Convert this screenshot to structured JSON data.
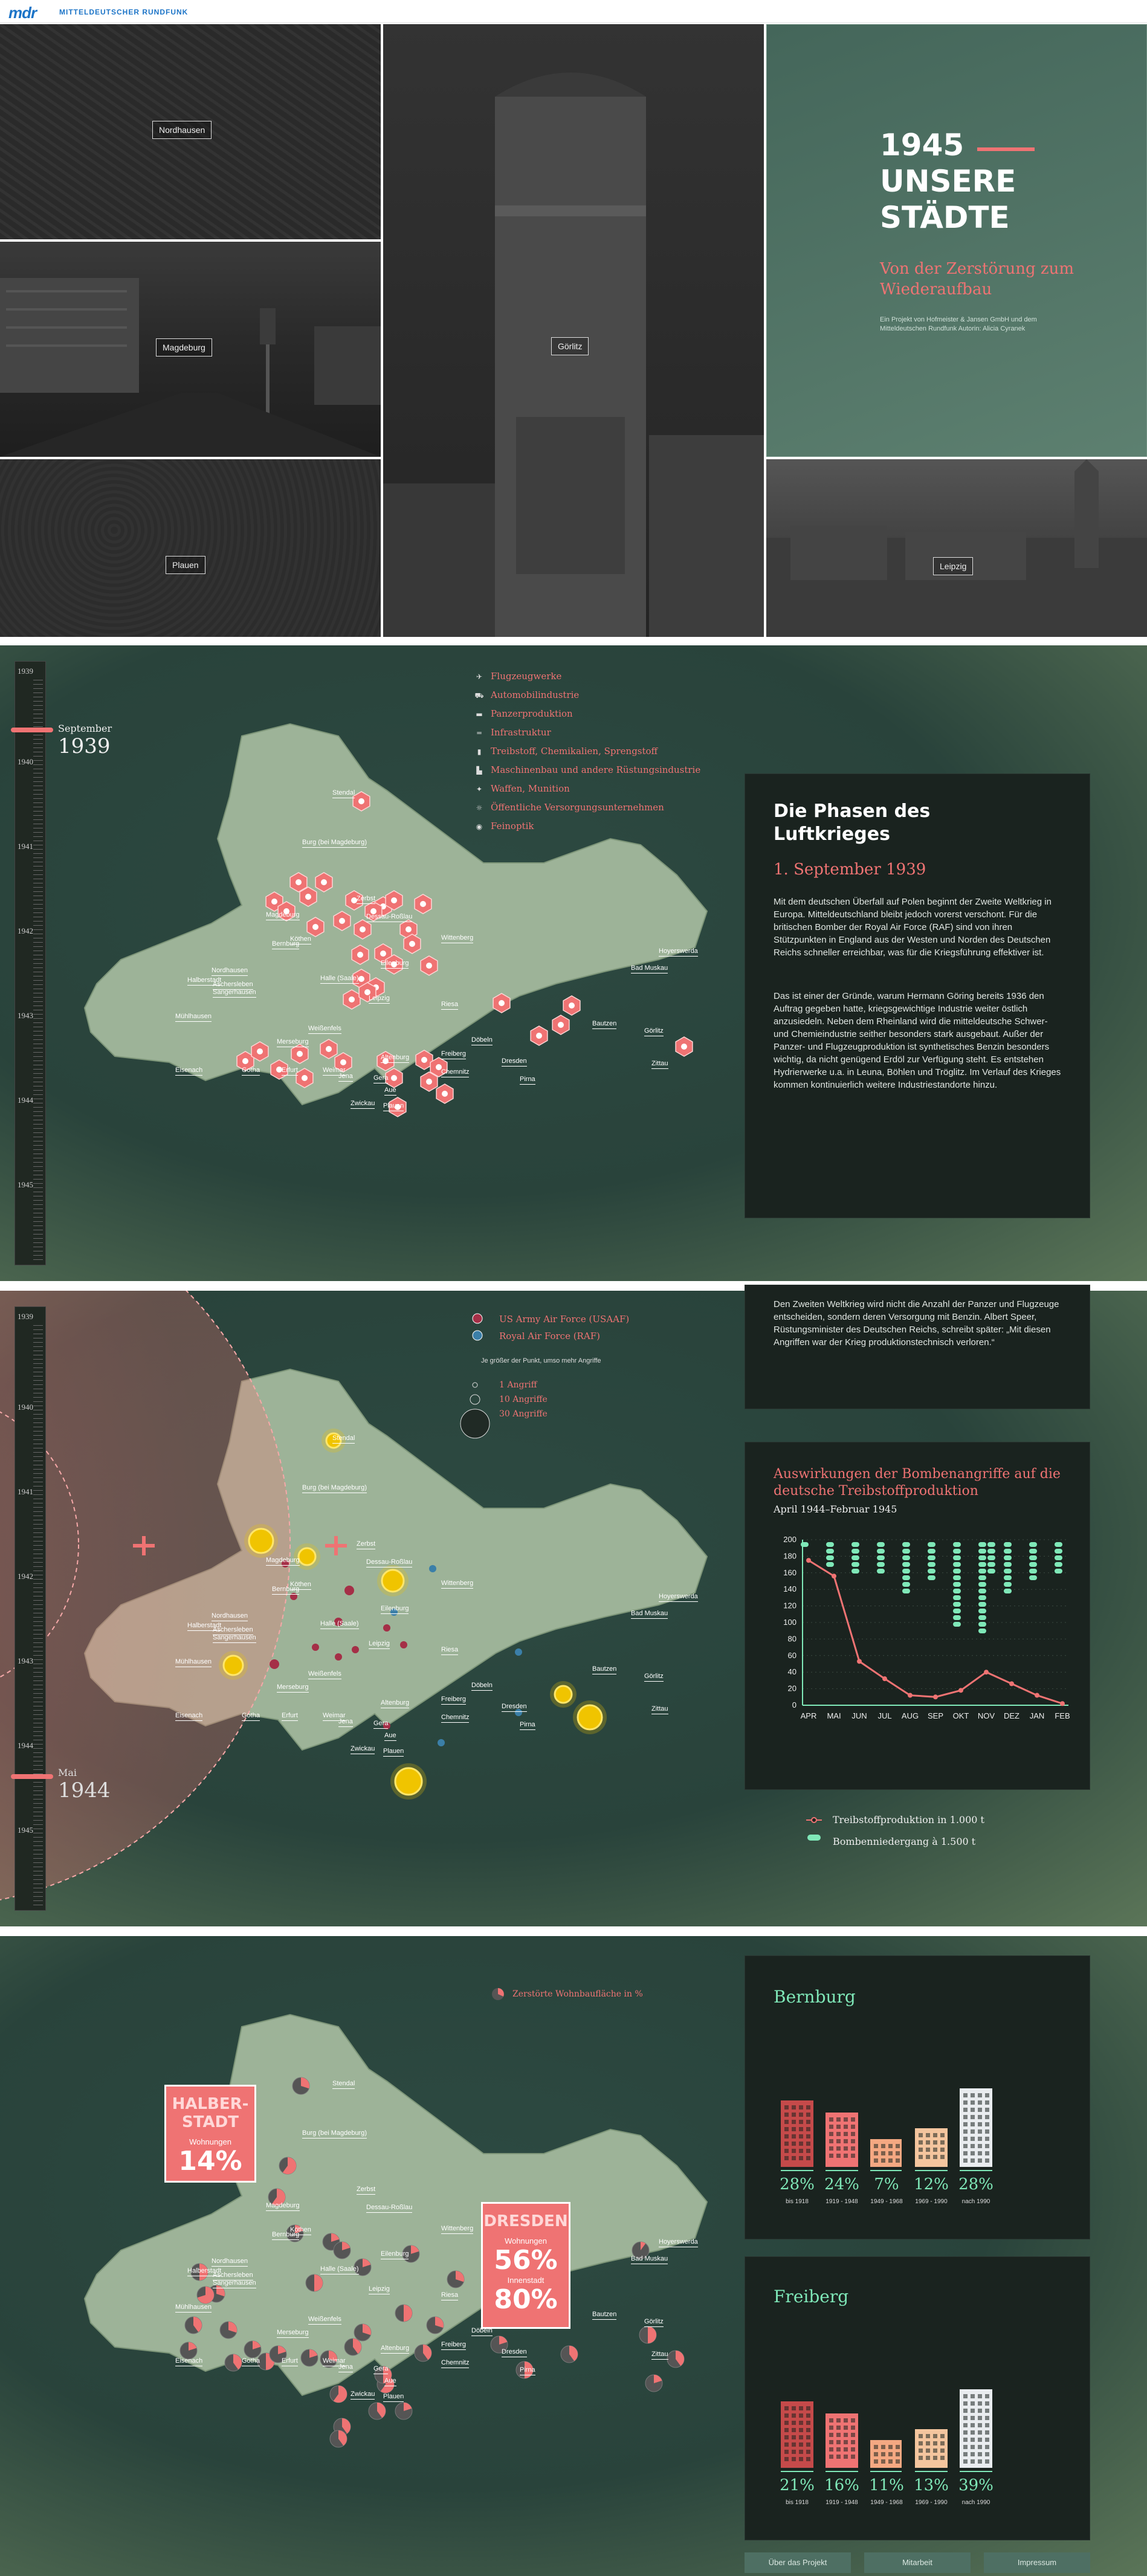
{
  "header": {
    "logo": "mdr",
    "brand": "MITTELDEUTSCHER RUNDFUNK"
  },
  "hero": {
    "cities": [
      "Nordhausen",
      "Magdeburg",
      "Plauen",
      "Görlitz",
      "Leipzig"
    ],
    "title_l1": "1945",
    "title_l2": "UNSERE",
    "title_l3": "STÄDTE",
    "subtitle": "Von der Zerstörung zum Wiederaufbau",
    "credits": "Ein Projekt von Hofmeister & Jansen GmbH und dem Mitteldeutschen Rundfunk Autorin: Alicia Cyranek"
  },
  "timeline": {
    "years": [
      "1939",
      "1940",
      "1941",
      "1942",
      "1943",
      "1944",
      "1945"
    ]
  },
  "section1": {
    "date_month": "September",
    "date_year": "1939",
    "legend": [
      {
        "icon": "plane-icon",
        "label": "Flugzeugwerke"
      },
      {
        "icon": "car-icon",
        "label": "Automobilindustrie"
      },
      {
        "icon": "tank-icon",
        "label": "Panzerproduktion"
      },
      {
        "icon": "road-icon",
        "label": "Infrastruktur"
      },
      {
        "icon": "barrel-icon",
        "label": "Treibstoff, Chemikalien, Sprengstoff"
      },
      {
        "icon": "factory-icon",
        "label": "Maschinenbau und andere Rüstungsindustrie"
      },
      {
        "icon": "weapon-icon",
        "label": "Waffen, Munition"
      },
      {
        "icon": "utility-icon",
        "label": "Öffentliche Versorgungsunternehmen"
      },
      {
        "icon": "eye-icon",
        "label": "Feinoptik"
      }
    ],
    "panel_title": "Die Phasen des Luftkrieges",
    "panel_date": "1. September 1939",
    "panel_p1": "Mit dem deutschen Überfall auf Polen beginnt der Zweite Weltkrieg in Europa. Mitteldeutschland bleibt jedoch vorerst verschont. Für die britischen Bomber der Royal Air Force (RAF) sind von ihren Stützpunkten in England aus der Westen und Norden des Deutschen Reichs schneller erreichbar, was für die Kriegsführung effektiver ist.",
    "panel_p2": "Das ist einer der Gründe, warum Hermann Göring bereits 1936 den Auftrag gegeben hatte, kriegsgewichtige Industrie weiter östlich anzusiedeln. Neben dem Rheinland wird die mitteldeutsche Schwer- und Chemieindustrie seither besonders stark ausgebaut. Außer der Panzer- und Flugzeugproduktion ist synthetisches Benzin besonders wichtig, da nicht genügend Erdöl zur Verfügung steht. Es entstehen Hydrierwerke u.a. in Leuna, Böhlen und Tröglitz. Im Verlauf des Krieges kommen kontinuierlich weitere Industriestandorte hinzu."
  },
  "map_labels": [
    "Stendal",
    "Burg (bei Magdeburg)",
    "Zerbst",
    "Dessau-Roßlau",
    "Halberstadt",
    "Aschersleben",
    "Köthen",
    "Bernburg",
    "Nordhausen",
    "Sangerhausen",
    "Halle (Saale)",
    "Leipzig",
    "Eilenburg",
    "Mühlhausen",
    "Weißenfels",
    "Merseburg",
    "Riesa",
    "Döbeln",
    "Eisenach",
    "Gotha",
    "Erfurt",
    "Weimar",
    "Jena",
    "Gera",
    "Altenburg",
    "Chemnitz",
    "Zwickau",
    "Plauen",
    "Aue",
    "Freiberg",
    "Dresden",
    "Pirna",
    "Bautzen",
    "Görlitz",
    "Zittau",
    "Bad Muskau",
    "Hoyerswerda",
    "Wittenberg",
    "Magdeburg"
  ],
  "section2": {
    "date_month": "Mai",
    "date_year": "1944",
    "legend_usaaf": "US Army Air Force (USAAF)",
    "legend_raf": "Royal Air Force (RAF)",
    "legend_note": "Je größer der Punkt, umso mehr Angriffe",
    "size_legend": [
      "1 Angriff",
      "10 Angriffe",
      "30 Angriffe"
    ],
    "panel_text": "Den Zweiten Weltkrieg wird nicht die Anzahl der Panzer und Flugzeuge entscheiden, sondern deren Versorgung mit Benzin. Albert Speer, Rüstungsminister des Deutschen Reichs, schreibt später: „Mit diesen Angriffen war der Krieg produktionstechnisch verloren.“",
    "chart_title": "Auswirkungen der Bombenangriffe auf die deutsche Treibstoffproduktion",
    "chart_subtitle": "April 1944–Februar 1945",
    "legend_line": "Treibstoffproduktion in 1.000 t",
    "legend_bomb": "Bombenniedergang à 1.500 t"
  },
  "chart_data": {
    "type": "line",
    "title": "Auswirkungen der Bombenangriffe auf die deutsche Treibstoffproduktion",
    "subtitle": "April 1944–Februar 1945",
    "categories": [
      "APR",
      "MAI",
      "JUN",
      "JUL",
      "AUG",
      "SEP",
      "OKT",
      "NOV",
      "DEZ",
      "JAN",
      "FEB"
    ],
    "ylim": [
      0,
      200
    ],
    "yticks": [
      0,
      20,
      40,
      60,
      80,
      100,
      120,
      140,
      160,
      180,
      200
    ],
    "series": [
      {
        "name": "Treibstoffproduktion in 1.000 t",
        "values": [
          175,
          156,
          53,
          32,
          12,
          10,
          18,
          40,
          26,
          12,
          2
        ]
      },
      {
        "name": "Bombenniedergang à 1.500 t",
        "values": [
          1,
          4,
          5,
          5,
          8,
          6,
          13,
          19,
          8,
          6,
          5
        ]
      }
    ]
  },
  "section3": {
    "legend": "Zerstörte Wohnbaufläche in %",
    "halberstadt": {
      "name": "HALBER-STADT",
      "sub": "Wohnungen",
      "pct": "14%"
    },
    "dresden": {
      "name": "DRESDEN",
      "sub1": "Wohnungen",
      "pct1": "56%",
      "sub2": "Innenstadt",
      "pct2": "80%"
    },
    "bernburg": {
      "name": "Bernburg",
      "stats": [
        {
          "pct": "28%",
          "yr": "bis 1918"
        },
        {
          "pct": "24%",
          "yr": "1919 - 1948"
        },
        {
          "pct": "7%",
          "yr": "1949 - 1968"
        },
        {
          "pct": "12%",
          "yr": "1969 - 1990"
        },
        {
          "pct": "28%",
          "yr": "nach 1990"
        }
      ]
    },
    "freiberg": {
      "name": "Freiberg",
      "stats": [
        {
          "pct": "21%",
          "yr": "bis 1918"
        },
        {
          "pct": "16%",
          "yr": "1919 - 1948"
        },
        {
          "pct": "11%",
          "yr": "1949 - 1968"
        },
        {
          "pct": "13%",
          "yr": "1969 - 1990"
        },
        {
          "pct": "39%",
          "yr": "nach 1990"
        }
      ]
    }
  },
  "footer": {
    "links": [
      "Über das Projekt",
      "Mitarbeit",
      "Impressum"
    ]
  },
  "colors": {
    "accent": "#ef7373",
    "mint": "#7fe8b8",
    "panel": "#1a231f"
  }
}
